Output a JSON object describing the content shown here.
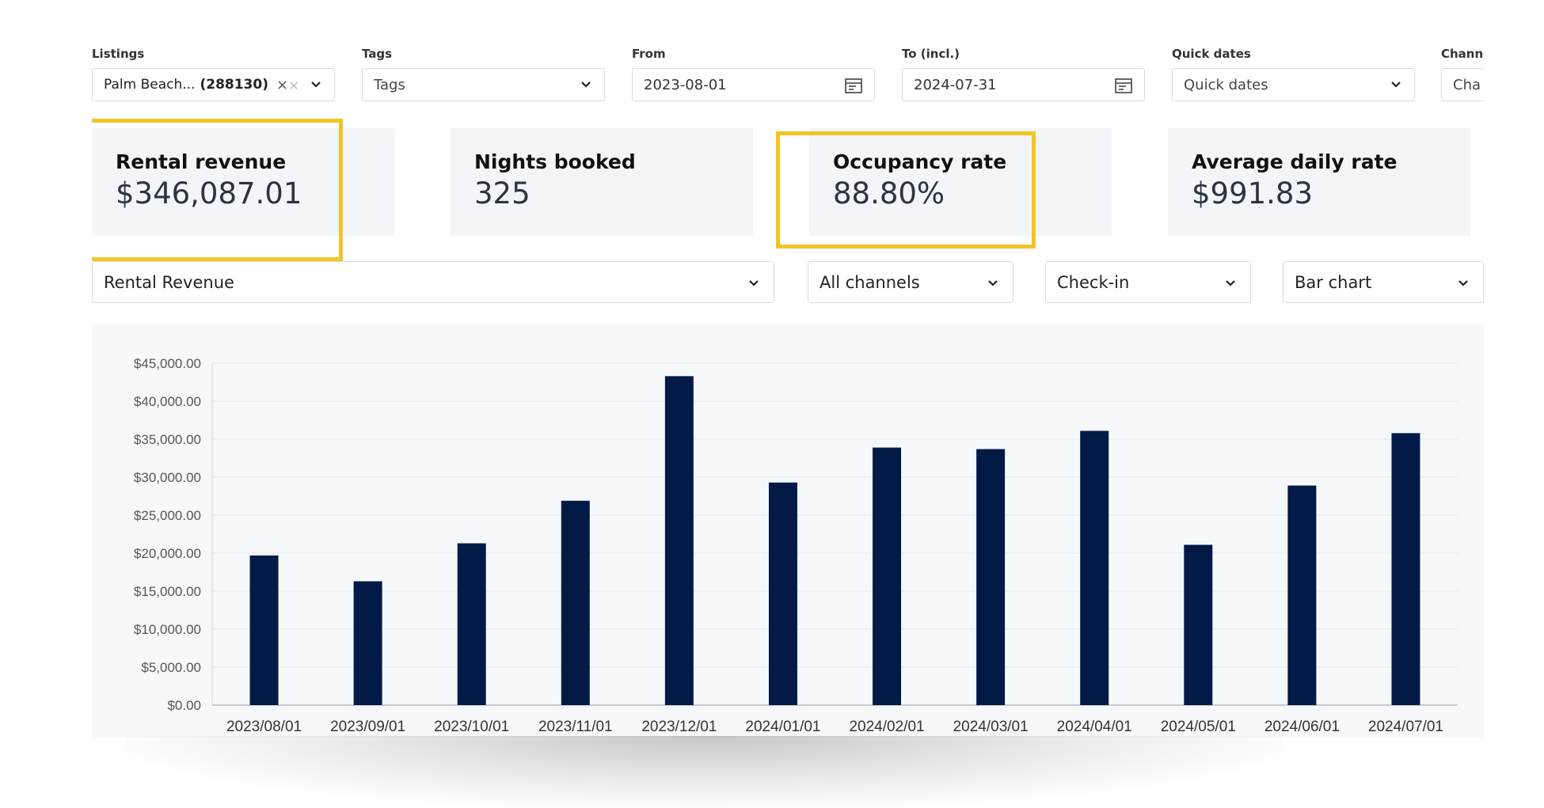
{
  "filters": {
    "listings": {
      "label": "Listings",
      "chip_name": "Palm Beach...",
      "chip_id": "(288130)"
    },
    "tags": {
      "label": "Tags",
      "placeholder": "Tags"
    },
    "from": {
      "label": "From",
      "value": "2023-08-01"
    },
    "to": {
      "label": "To (incl.)",
      "value": "2024-07-31"
    },
    "quick_dates": {
      "label": "Quick dates",
      "placeholder": "Quick dates"
    },
    "channel": {
      "label": "Channe",
      "placeholder": "Cha"
    }
  },
  "metrics": [
    {
      "title": "Rental revenue",
      "value": "$346,087.01",
      "highlighted": true
    },
    {
      "title": "Nights booked",
      "value": "325",
      "highlighted": false
    },
    {
      "title": "Occupancy rate",
      "value": "88.80%",
      "highlighted": true
    },
    {
      "title": "Average daily rate",
      "value": "$991.83",
      "highlighted": false
    }
  ],
  "selectors": {
    "metric": "Rental Revenue",
    "channels": "All channels",
    "date_basis": "Check-in",
    "chart_type": "Bar chart"
  },
  "colors": {
    "bar": "#031a47",
    "highlight": "#f2c526",
    "card_bg": "#f3f5f8"
  },
  "icons": [
    "close-icon",
    "chevron-down-icon",
    "calendar-icon"
  ],
  "chart_data": {
    "type": "bar",
    "categories": [
      "2023/08/01",
      "2023/09/01",
      "2023/10/01",
      "2023/11/01",
      "2023/12/01",
      "2024/01/01",
      "2024/02/01",
      "2024/03/01",
      "2024/04/01",
      "2024/05/01",
      "2024/06/01",
      "2024/07/01"
    ],
    "values": [
      19700,
      16300,
      21300,
      26900,
      43300,
      29300,
      33900,
      33700,
      36100,
      21100,
      28900,
      35800
    ],
    "y_ticks": [
      "$0.00",
      "$5,000.00",
      "$10,000.00",
      "$15,000.00",
      "$20,000.00",
      "$25,000.00",
      "$30,000.00",
      "$35,000.00",
      "$40,000.00",
      "$45,000.00"
    ],
    "ylim": [
      0,
      45000
    ],
    "grid": true,
    "title": "",
    "xlabel": "",
    "ylabel": ""
  }
}
